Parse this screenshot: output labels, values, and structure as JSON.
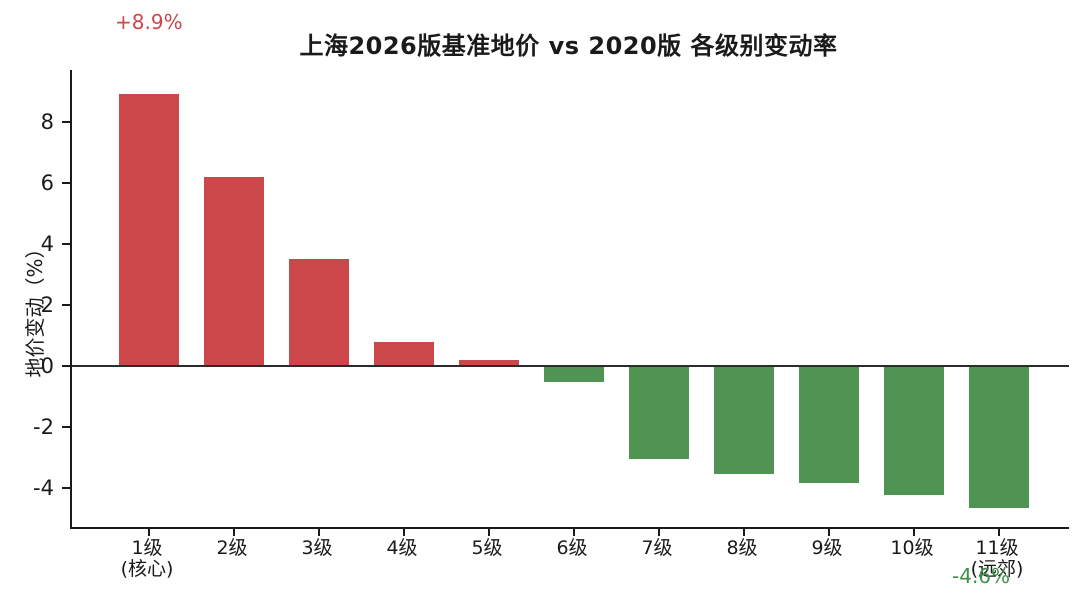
{
  "title": "上海2026版基准地价 vs 2020版 各级别变动率",
  "annotations": {
    "max_label": {
      "text": "+8.9%",
      "color": "#cb4749"
    },
    "min_label": {
      "text": "-4.6%",
      "color": "#3f8f4a"
    }
  },
  "chart_data": {
    "type": "bar",
    "title": "上海2026版基准地价 vs 2020版 各级别变动率",
    "xlabel": "",
    "ylabel": "地价变动（%）",
    "categories": [
      {
        "label": "1级",
        "sublabel": "(核心)"
      },
      {
        "label": "2级",
        "sublabel": ""
      },
      {
        "label": "3级",
        "sublabel": ""
      },
      {
        "label": "4级",
        "sublabel": ""
      },
      {
        "label": "5级",
        "sublabel": ""
      },
      {
        "label": "6级",
        "sublabel": ""
      },
      {
        "label": "7级",
        "sublabel": ""
      },
      {
        "label": "8级",
        "sublabel": ""
      },
      {
        "label": "9级",
        "sublabel": ""
      },
      {
        "label": "10级",
        "sublabel": ""
      },
      {
        "label": "11级",
        "sublabel": "(远郊)"
      }
    ],
    "values": [
      8.9,
      6.2,
      3.5,
      0.8,
      0.2,
      -0.5,
      -3.0,
      -3.5,
      -3.8,
      -4.2,
      -4.6
    ],
    "yticks": [
      8,
      6,
      4,
      2,
      0,
      -2,
      -4
    ],
    "ylim": [
      -5.2,
      9.7
    ],
    "bar_colors": {
      "positive": "#cb4749",
      "negative": "#4f9453"
    },
    "zero_line": true,
    "grid": false
  }
}
